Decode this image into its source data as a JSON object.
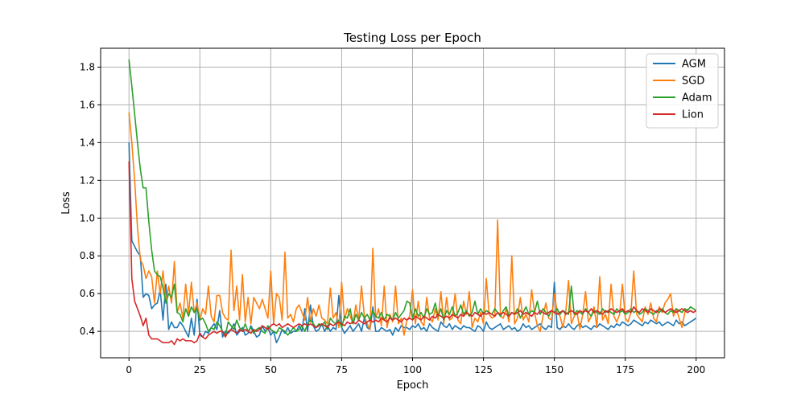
{
  "chart_data": {
    "type": "line",
    "title": "Testing Loss per Epoch",
    "xlabel": "Epoch",
    "ylabel": "Loss",
    "xlim": [
      -10,
      210
    ],
    "ylim": [
      0.26,
      1.9
    ],
    "xticks": [
      0,
      25,
      50,
      75,
      100,
      125,
      150,
      175,
      200
    ],
    "yticks": [
      0.4,
      0.6,
      0.8,
      1.0,
      1.2,
      1.4,
      1.6,
      1.8
    ],
    "xtick_labels": [
      "0",
      "25",
      "50",
      "75",
      "100",
      "125",
      "150",
      "175",
      "200"
    ],
    "ytick_labels": [
      "0.4",
      "0.6",
      "0.8",
      "1.0",
      "1.2",
      "1.4",
      "1.6",
      "1.8"
    ],
    "grid": true,
    "legend_position": "top-right",
    "series": [
      {
        "name": "AGM",
        "color": "#1f77b4",
        "values": [
          1.4,
          0.88,
          0.85,
          0.82,
          0.8,
          0.58,
          0.6,
          0.59,
          0.52,
          0.54,
          0.55,
          0.62,
          0.46,
          0.65,
          0.41,
          0.45,
          0.42,
          0.42,
          0.45,
          0.43,
          0.4,
          0.37,
          0.47,
          0.38,
          0.57,
          0.38,
          0.37,
          0.4,
          0.39,
          0.42,
          0.44,
          0.41,
          0.51,
          0.37,
          0.4,
          0.39,
          0.41,
          0.44,
          0.38,
          0.4,
          0.42,
          0.38,
          0.39,
          0.43,
          0.4,
          0.37,
          0.38,
          0.43,
          0.4,
          0.42,
          0.38,
          0.4,
          0.34,
          0.37,
          0.41,
          0.39,
          0.42,
          0.39,
          0.4,
          0.4,
          0.43,
          0.4,
          0.52,
          0.4,
          0.54,
          0.43,
          0.4,
          0.41,
          0.44,
          0.4,
          0.43,
          0.4,
          0.42,
          0.41,
          0.59,
          0.42,
          0.39,
          0.41,
          0.43,
          0.4,
          0.42,
          0.44,
          0.4,
          0.47,
          0.42,
          0.41,
          0.53,
          0.4,
          0.4,
          0.42,
          0.41,
          0.4,
          0.41,
          0.38,
          0.42,
          0.4,
          0.43,
          0.42,
          0.42,
          0.41,
          0.43,
          0.42,
          0.44,
          0.41,
          0.42,
          0.4,
          0.44,
          0.42,
          0.41,
          0.4,
          0.45,
          0.43,
          0.42,
          0.44,
          0.41,
          0.43,
          0.42,
          0.41,
          0.43,
          0.42,
          0.42,
          0.41,
          0.4,
          0.43,
          0.42,
          0.4,
          0.45,
          0.42,
          0.41,
          0.42,
          0.43,
          0.44,
          0.41,
          0.42,
          0.43,
          0.41,
          0.42,
          0.4,
          0.41,
          0.44,
          0.42,
          0.43,
          0.41,
          0.42,
          0.43,
          0.44,
          0.42,
          0.41,
          0.43,
          0.42,
          0.66,
          0.42,
          0.41,
          0.43,
          0.42,
          0.44,
          0.42,
          0.41,
          0.43,
          0.44,
          0.42,
          0.43,
          0.42,
          0.41,
          0.43,
          0.42,
          0.44,
          0.43,
          0.42,
          0.41,
          0.43,
          0.42,
          0.44,
          0.43,
          0.45,
          0.44,
          0.43,
          0.44,
          0.46,
          0.45,
          0.44,
          0.43,
          0.45,
          0.44,
          0.46,
          0.45,
          0.44,
          0.45,
          0.43,
          0.44,
          0.45,
          0.44,
          0.43,
          0.46,
          0.44,
          0.45,
          0.43,
          0.44,
          0.45,
          0.46,
          0.47
        ]
      },
      {
        "name": "SGD",
        "color": "#ff7f0e",
        "values": [
          1.56,
          1.4,
          1.2,
          0.95,
          0.78,
          0.75,
          0.68,
          0.72,
          0.69,
          0.55,
          0.72,
          0.6,
          0.72,
          0.55,
          0.64,
          0.55,
          0.77,
          0.5,
          0.55,
          0.47,
          0.65,
          0.49,
          0.66,
          0.5,
          0.55,
          0.46,
          0.52,
          0.49,
          0.64,
          0.48,
          0.45,
          0.59,
          0.59,
          0.5,
          0.47,
          0.46,
          0.83,
          0.51,
          0.64,
          0.46,
          0.7,
          0.45,
          0.58,
          0.44,
          0.58,
          0.55,
          0.52,
          0.57,
          0.52,
          0.47,
          0.72,
          0.44,
          0.6,
          0.58,
          0.46,
          0.82,
          0.47,
          0.49,
          0.45,
          0.52,
          0.54,
          0.5,
          0.46,
          0.58,
          0.45,
          0.52,
          0.48,
          0.54,
          0.47,
          0.46,
          0.44,
          0.63,
          0.47,
          0.5,
          0.42,
          0.66,
          0.46,
          0.52,
          0.48,
          0.44,
          0.54,
          0.46,
          0.64,
          0.48,
          0.44,
          0.41,
          0.84,
          0.47,
          0.52,
          0.43,
          0.64,
          0.42,
          0.49,
          0.45,
          0.64,
          0.44,
          0.47,
          0.38,
          0.46,
          0.48,
          0.62,
          0.44,
          0.56,
          0.45,
          0.43,
          0.58,
          0.47,
          0.45,
          0.52,
          0.46,
          0.61,
          0.44,
          0.58,
          0.46,
          0.47,
          0.6,
          0.46,
          0.44,
          0.56,
          0.49,
          0.61,
          0.42,
          0.47,
          0.45,
          0.5,
          0.44,
          0.68,
          0.49,
          0.47,
          0.48,
          0.99,
          0.48,
          0.47,
          0.52,
          0.45,
          0.8,
          0.44,
          0.47,
          0.58,
          0.46,
          0.49,
          0.45,
          0.62,
          0.5,
          0.43,
          0.4,
          0.48,
          0.55,
          0.47,
          0.46,
          0.6,
          0.5,
          0.48,
          0.42,
          0.5,
          0.67,
          0.44,
          0.48,
          0.5,
          0.41,
          0.49,
          0.61,
          0.45,
          0.48,
          0.53,
          0.42,
          0.69,
          0.46,
          0.49,
          0.44,
          0.65,
          0.48,
          0.45,
          0.49,
          0.65,
          0.47,
          0.45,
          0.5,
          0.72,
          0.49,
          0.47,
          0.45,
          0.53,
          0.49,
          0.55,
          0.47,
          0.45,
          0.53,
          0.5,
          0.55,
          0.57,
          0.6,
          0.48,
          0.52,
          0.47,
          0.42,
          0.5,
          0.52
        ]
      },
      {
        "name": "Adam",
        "color": "#2ca02c",
        "values": [
          1.84,
          1.7,
          1.55,
          1.4,
          1.26,
          1.16,
          1.16,
          0.98,
          0.83,
          0.72,
          0.7,
          0.69,
          0.63,
          0.55,
          0.6,
          0.58,
          0.65,
          0.5,
          0.49,
          0.45,
          0.52,
          0.48,
          0.53,
          0.5,
          0.52,
          0.46,
          0.47,
          0.44,
          0.4,
          0.42,
          0.41,
          0.45,
          0.43,
          0.4,
          0.38,
          0.45,
          0.43,
          0.41,
          0.46,
          0.42,
          0.4,
          0.44,
          0.4,
          0.42,
          0.39,
          0.41,
          0.42,
          0.4,
          0.39,
          0.43,
          0.41,
          0.4,
          0.39,
          0.42,
          0.41,
          0.4,
          0.38,
          0.4,
          0.42,
          0.4,
          0.41,
          0.43,
          0.4,
          0.44,
          0.46,
          0.44,
          0.42,
          0.44,
          0.43,
          0.45,
          0.41,
          0.47,
          0.45,
          0.44,
          0.46,
          0.42,
          0.48,
          0.47,
          0.52,
          0.44,
          0.49,
          0.46,
          0.5,
          0.47,
          0.49,
          0.46,
          0.51,
          0.48,
          0.47,
          0.5,
          0.46,
          0.49,
          0.48,
          0.46,
          0.5,
          0.47,
          0.49,
          0.51,
          0.56,
          0.55,
          0.47,
          0.52,
          0.48,
          0.5,
          0.47,
          0.52,
          0.49,
          0.5,
          0.55,
          0.48,
          0.52,
          0.46,
          0.51,
          0.49,
          0.53,
          0.48,
          0.5,
          0.54,
          0.49,
          0.51,
          0.48,
          0.5,
          0.56,
          0.49,
          0.52,
          0.49,
          0.51,
          0.5,
          0.49,
          0.52,
          0.5,
          0.48,
          0.51,
          0.53,
          0.48,
          0.5,
          0.49,
          0.52,
          0.47,
          0.5,
          0.53,
          0.49,
          0.51,
          0.5,
          0.56,
          0.49,
          0.52,
          0.5,
          0.48,
          0.51,
          0.5,
          0.52,
          0.49,
          0.51,
          0.5,
          0.49,
          0.64,
          0.49,
          0.51,
          0.5,
          0.49,
          0.52,
          0.5,
          0.48,
          0.51,
          0.5,
          0.49,
          0.52,
          0.5,
          0.51,
          0.5,
          0.49,
          0.52,
          0.5,
          0.51,
          0.49,
          0.5,
          0.52,
          0.5,
          0.51,
          0.49,
          0.5,
          0.52,
          0.51,
          0.5,
          0.49,
          0.51,
          0.5,
          0.52,
          0.5,
          0.49,
          0.51,
          0.5,
          0.52,
          0.51,
          0.5,
          0.52,
          0.51,
          0.53,
          0.52,
          0.51
        ]
      },
      {
        "name": "Lion",
        "color": "#d62728",
        "values": [
          1.3,
          0.68,
          0.56,
          0.52,
          0.48,
          0.43,
          0.47,
          0.38,
          0.36,
          0.36,
          0.36,
          0.35,
          0.34,
          0.34,
          0.34,
          0.35,
          0.33,
          0.36,
          0.35,
          0.36,
          0.35,
          0.35,
          0.35,
          0.34,
          0.35,
          0.39,
          0.37,
          0.36,
          0.38,
          0.39,
          0.4,
          0.39,
          0.4,
          0.4,
          0.37,
          0.4,
          0.41,
          0.4,
          0.39,
          0.41,
          0.4,
          0.41,
          0.4,
          0.39,
          0.41,
          0.4,
          0.41,
          0.43,
          0.42,
          0.41,
          0.43,
          0.44,
          0.43,
          0.44,
          0.42,
          0.43,
          0.44,
          0.43,
          0.42,
          0.43,
          0.44,
          0.43,
          0.44,
          0.43,
          0.44,
          0.43,
          0.42,
          0.43,
          0.44,
          0.43,
          0.42,
          0.44,
          0.43,
          0.44,
          0.45,
          0.44,
          0.43,
          0.45,
          0.44,
          0.45,
          0.44,
          0.46,
          0.45,
          0.44,
          0.45,
          0.46,
          0.45,
          0.46,
          0.45,
          0.47,
          0.46,
          0.45,
          0.47,
          0.46,
          0.47,
          0.46,
          0.45,
          0.47,
          0.46,
          0.47,
          0.46,
          0.48,
          0.47,
          0.46,
          0.48,
          0.47,
          0.46,
          0.48,
          0.47,
          0.49,
          0.48,
          0.47,
          0.48,
          0.47,
          0.49,
          0.48,
          0.47,
          0.49,
          0.48,
          0.5,
          0.49,
          0.48,
          0.5,
          0.49,
          0.48,
          0.5,
          0.49,
          0.5,
          0.49,
          0.48,
          0.5,
          0.49,
          0.5,
          0.49,
          0.48,
          0.5,
          0.49,
          0.5,
          0.51,
          0.49,
          0.5,
          0.49,
          0.48,
          0.5,
          0.49,
          0.51,
          0.5,
          0.49,
          0.5,
          0.51,
          0.5,
          0.49,
          0.5,
          0.51,
          0.49,
          0.5,
          0.51,
          0.5,
          0.49,
          0.51,
          0.5,
          0.51,
          0.5,
          0.52,
          0.5,
          0.51,
          0.5,
          0.49,
          0.51,
          0.5,
          0.52,
          0.51,
          0.5,
          0.51,
          0.52,
          0.5,
          0.51,
          0.5,
          0.53,
          0.51,
          0.5,
          0.52,
          0.51,
          0.5,
          0.52,
          0.51,
          0.5,
          0.52,
          0.51,
          0.5,
          0.51,
          0.52,
          0.51,
          0.5,
          0.51,
          0.52,
          0.51,
          0.5,
          0.51,
          0.5,
          0.51
        ]
      }
    ]
  }
}
